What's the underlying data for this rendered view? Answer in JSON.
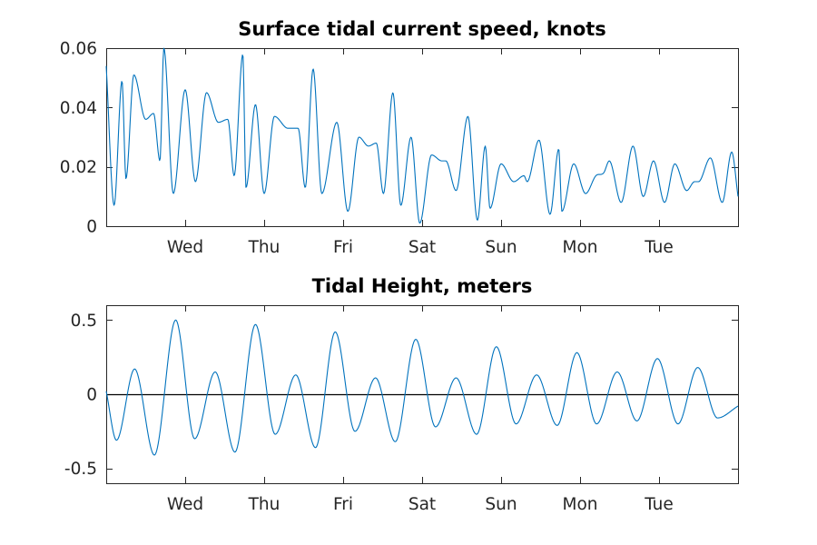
{
  "chart_data": [
    {
      "type": "line",
      "title": "Surface tidal current speed, knots",
      "xlabel": "",
      "ylabel": "",
      "x_unit": "days",
      "xlim": [
        0,
        8
      ],
      "ylim": [
        0,
        0.06
      ],
      "yticks": [
        0,
        0.02,
        0.04,
        0.06
      ],
      "ytick_labels": [
        "0",
        "0.02",
        "0.04",
        "0.06"
      ],
      "xticks": [
        1,
        2,
        3,
        4,
        5,
        6,
        7
      ],
      "xtick_labels": [
        "Wed",
        "Thu",
        "Fri",
        "Sat",
        "Sun",
        "Mon",
        "Tue"
      ],
      "zero_line": false,
      "grid": false,
      "series": [
        {
          "color": "#0072BD",
          "x": [
            0,
            0.1,
            0.2,
            0.25,
            0.35,
            0.5,
            0.6,
            0.68,
            0.73,
            0.85,
            1.0,
            1.13,
            1.27,
            1.42,
            1.54,
            1.62,
            1.73,
            1.77,
            1.89,
            2.0,
            2.13,
            2.3,
            2.43,
            2.52,
            2.62,
            2.73,
            2.92,
            3.06,
            3.2,
            3.32,
            3.42,
            3.51,
            3.63,
            3.73,
            3.86,
            3.97,
            4.12,
            4.25,
            4.3,
            4.43,
            4.58,
            4.7,
            4.8,
            4.86,
            5.0,
            5.16,
            5.29,
            5.33,
            5.48,
            5.62,
            5.73,
            5.77,
            5.92,
            6.07,
            6.2,
            6.3,
            6.37,
            6.52,
            6.67,
            6.8,
            6.93,
            7.07,
            7.2,
            7.35,
            7.45,
            7.5,
            7.65,
            7.8,
            7.92,
            8.0
          ],
          "y": [
            0.054,
            0.007,
            0.049,
            0.016,
            0.051,
            0.036,
            0.038,
            0.022,
            0.06,
            0.011,
            0.046,
            0.015,
            0.045,
            0.035,
            0.036,
            0.017,
            0.058,
            0.013,
            0.041,
            0.011,
            0.037,
            0.033,
            0.033,
            0.013,
            0.053,
            0.011,
            0.035,
            0.005,
            0.03,
            0.027,
            0.028,
            0.011,
            0.045,
            0.007,
            0.03,
            0.001,
            0.024,
            0.022,
            0.022,
            0.012,
            0.037,
            0.002,
            0.027,
            0.006,
            0.021,
            0.015,
            0.017,
            0.015,
            0.029,
            0.004,
            0.026,
            0.005,
            0.021,
            0.011,
            0.017,
            0.018,
            0.022,
            0.008,
            0.027,
            0.01,
            0.022,
            0.008,
            0.021,
            0.012,
            0.015,
            0.015,
            0.023,
            0.008,
            0.025,
            0.01
          ]
        }
      ]
    },
    {
      "type": "line",
      "title": "Tidal Height, meters",
      "xlabel": "",
      "ylabel": "",
      "x_unit": "days",
      "xlim": [
        0,
        8
      ],
      "ylim": [
        -0.6,
        0.6
      ],
      "yticks": [
        -0.5,
        0,
        0.5
      ],
      "ytick_labels": [
        "-0.5",
        "0",
        "0.5"
      ],
      "xticks": [
        1,
        2,
        3,
        4,
        5,
        6,
        7
      ],
      "xtick_labels": [
        "Wed",
        "Thu",
        "Fri",
        "Sat",
        "Sun",
        "Mon",
        "Tue"
      ],
      "zero_line": true,
      "grid": false,
      "series": [
        {
          "color": "#0072BD",
          "x": [
            0,
            0.13,
            0.36,
            0.61,
            0.88,
            1.12,
            1.38,
            1.63,
            1.89,
            2.14,
            2.4,
            2.65,
            2.9,
            3.15,
            3.41,
            3.66,
            3.92,
            4.17,
            4.43,
            4.69,
            4.94,
            5.19,
            5.45,
            5.71,
            5.96,
            6.21,
            6.47,
            6.72,
            6.98,
            7.24,
            7.49,
            7.74,
            8.0
          ],
          "y": [
            0.02,
            -0.31,
            0.17,
            -0.41,
            0.5,
            -0.3,
            0.15,
            -0.39,
            0.47,
            -0.27,
            0.13,
            -0.36,
            0.42,
            -0.25,
            0.11,
            -0.32,
            0.37,
            -0.22,
            0.11,
            -0.27,
            0.32,
            -0.2,
            0.13,
            -0.21,
            0.28,
            -0.2,
            0.15,
            -0.18,
            0.24,
            -0.2,
            0.18,
            -0.16,
            -0.08
          ]
        }
      ]
    }
  ]
}
